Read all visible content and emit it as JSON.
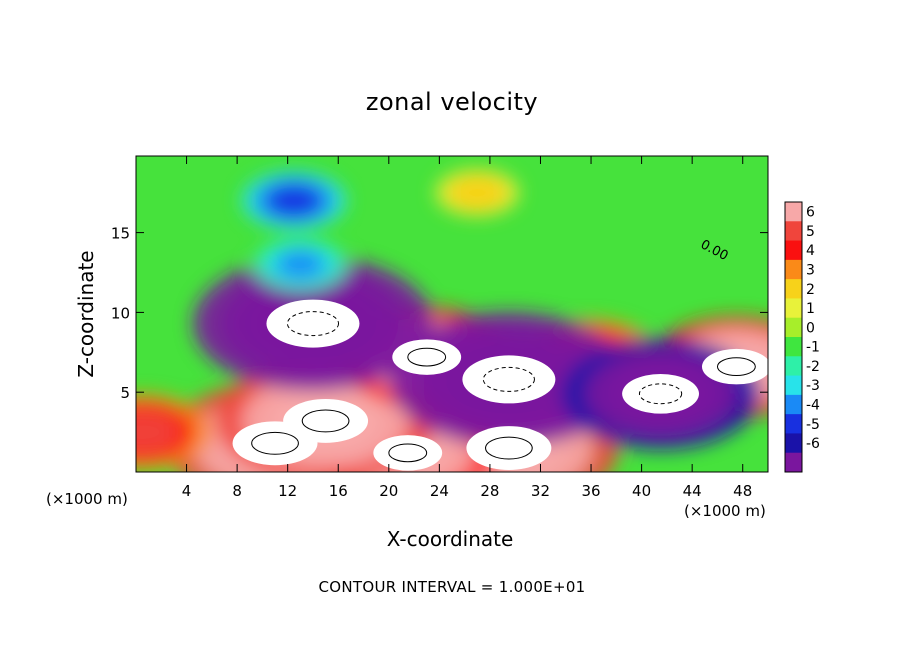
{
  "title": "zonal velocity",
  "footnote": "CONTOUR INTERVAL = 1.000E+01",
  "colors": {
    "background": "#ffffff",
    "frame": "#000000",
    "contour": "#000000",
    "saturated_positive": "#ffffff",
    "saturated_negative": "#ffffff"
  },
  "chart_data": {
    "type": "heatmap",
    "title": "zonal velocity",
    "xlabel": "X-coordinate",
    "ylabel": "Z-coordinate",
    "x_unit_label": "(×1000 m)",
    "xlim": [
      0,
      50
    ],
    "ylim": [
      0,
      19.8
    ],
    "xticks": [
      4,
      8,
      12,
      16,
      20,
      24,
      28,
      32,
      36,
      40,
      44,
      48
    ],
    "yticks": [
      5,
      10,
      15
    ],
    "colorbar": {
      "ticks": [
        6,
        5,
        4,
        3,
        2,
        1,
        0,
        -1,
        -2,
        -3,
        -4,
        -5,
        -6
      ],
      "colors": [
        "#f7a8a8",
        "#f0453c",
        "#fa1010",
        "#fa8a18",
        "#f7d21a",
        "#e8f23a",
        "#a7ee2a",
        "#3fe63f",
        "#2ef0a8",
        "#28e3ea",
        "#1a8af6",
        "#1830e0",
        "#1a12a8",
        "#7a169e"
      ],
      "range": [
        -6,
        6
      ]
    },
    "contour_interval": "1.000E+01",
    "contour_label": "0.00",
    "field_features": [
      {
        "kind": "max",
        "x": 11,
        "z": 1.8,
        "value": 9
      },
      {
        "kind": "max",
        "x": 29.5,
        "z": 1.5,
        "value": 9
      },
      {
        "kind": "max",
        "x": 21.5,
        "z": 1.2,
        "value": 7
      },
      {
        "kind": "max",
        "x": 15,
        "z": 3.2,
        "value": 9
      },
      {
        "kind": "max",
        "x": 23,
        "z": 7.2,
        "value": 7
      },
      {
        "kind": "max",
        "x": 47.5,
        "z": 6.6,
        "value": 7
      },
      {
        "kind": "max",
        "x": 36,
        "z": 7.2,
        "value": 5
      },
      {
        "kind": "max",
        "x": 0.5,
        "z": 2.5,
        "value": 5
      },
      {
        "kind": "max",
        "x": 27,
        "z": 17.5,
        "value": 2.5
      },
      {
        "kind": "min",
        "x": 14,
        "z": 9.3,
        "value": -10
      },
      {
        "kind": "min",
        "x": 29.5,
        "z": 5.8,
        "value": -10
      },
      {
        "kind": "min",
        "x": 41.5,
        "z": 4.9,
        "value": -8
      },
      {
        "kind": "min",
        "x": 12.5,
        "z": 17,
        "value": -3.5
      },
      {
        "kind": "min",
        "x": 13,
        "z": 13,
        "value": -3
      }
    ]
  }
}
